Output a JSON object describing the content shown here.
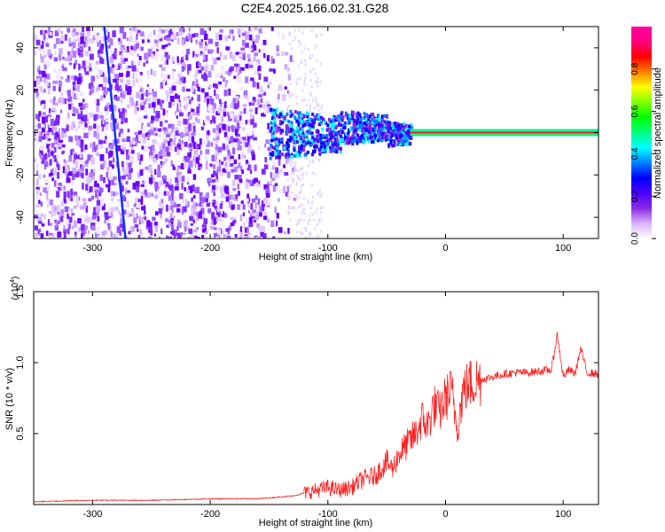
{
  "chart_data": [
    {
      "type": "heatmap",
      "title": "C2E4.2025.166.02.31.G28",
      "xlabel": "Height of straight line (km)",
      "ylabel": "Frequency (Hz)",
      "xlim": [
        -350,
        130
      ],
      "ylim": [
        -50,
        50
      ],
      "xticks": [
        -300,
        -200,
        -100,
        0,
        100
      ],
      "yticks": [
        -40,
        -20,
        0,
        20,
        40
      ],
      "colorbar": {
        "label": "Normalized spectral amplitude",
        "range": [
          0,
          1
        ],
        "ticks": [
          "0.0",
          "0.2",
          "0.4",
          "0.6",
          "0.8"
        ],
        "colors": [
          "#ffffff",
          "#d9b3ff",
          "#8a2be2",
          "#4b00ff",
          "#0000ff",
          "#0080ff",
          "#00ffff",
          "#00ff80",
          "#00ff00",
          "#80ff00",
          "#ffff00",
          "#ff8000",
          "#ff0000",
          "#ff0080",
          "#ff00a0"
        ]
      },
      "features": [
        {
          "desc": "diagonal line",
          "x_start": -290,
          "y_start": 50,
          "x_end": -272,
          "y_end": -50
        },
        {
          "desc": "carrier line",
          "x_start": -30,
          "x_end": 130,
          "y": 0
        }
      ]
    },
    {
      "type": "line",
      "xlabel": "Height of straight line (km)",
      "ylabel": "SNR (10 * v/v)",
      "yscale_label": "(x10",
      "yscale_exp": "4",
      "yscale_close": ")",
      "xlim": [
        -350,
        130
      ],
      "ylim": [
        0,
        1.5
      ],
      "xticks": [
        -300,
        -200,
        -100,
        0,
        100
      ],
      "yticks": [
        "0.5",
        "1.0",
        "1.5"
      ],
      "color": "#ff2020",
      "x": [
        -350,
        -300,
        -250,
        -200,
        -160,
        -130,
        -110,
        -100,
        -90,
        -80,
        -70,
        -60,
        -50,
        -45,
        -40,
        -35,
        -30,
        -25,
        -20,
        -15,
        -10,
        -5,
        0,
        5,
        10,
        15,
        20,
        30,
        40,
        50,
        60,
        70,
        80,
        90,
        95,
        100,
        105,
        110,
        115,
        120,
        130
      ],
      "y": [
        0.02,
        0.03,
        0.03,
        0.04,
        0.04,
        0.06,
        0.1,
        0.12,
        0.1,
        0.12,
        0.18,
        0.2,
        0.3,
        0.25,
        0.35,
        0.4,
        0.45,
        0.5,
        0.6,
        0.55,
        0.7,
        0.65,
        0.75,
        0.8,
        0.55,
        0.8,
        0.85,
        0.88,
        0.9,
        0.92,
        0.93,
        0.93,
        0.94,
        0.95,
        1.2,
        0.9,
        0.95,
        0.92,
        1.1,
        0.93,
        0.92
      ]
    }
  ]
}
